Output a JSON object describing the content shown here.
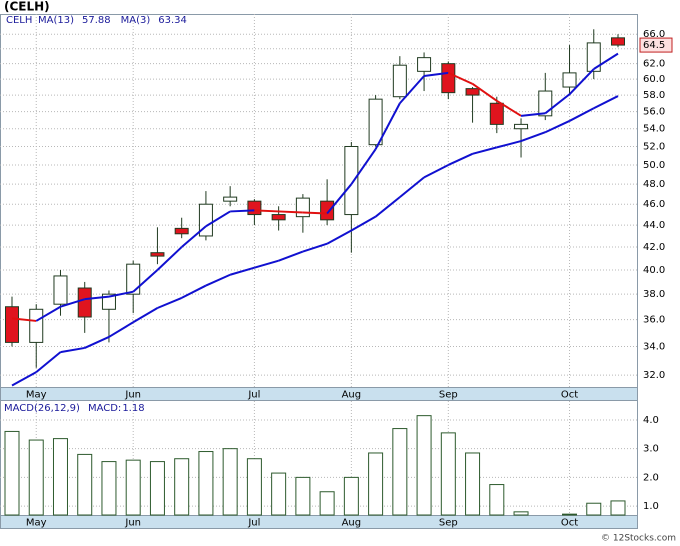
{
  "chart_data": [
    {
      "type": "candlestick",
      "title": "(CELH)",
      "symbol": "CELH",
      "categories": [
        null,
        "May",
        null,
        null,
        null,
        "Jun",
        null,
        null,
        null,
        null,
        "Jul",
        null,
        null,
        null,
        "Aug",
        null,
        null,
        null,
        "Sep",
        null,
        null,
        null,
        null,
        "Oct",
        null,
        null
      ],
      "open": [
        37.0,
        34.3,
        37.2,
        38.5,
        36.8,
        38.0,
        41.5,
        43.7,
        43.0,
        46.3,
        46.3,
        45.0,
        44.8,
        46.3,
        45.0,
        52.2,
        57.8,
        61.0,
        62.0,
        58.8,
        57.0,
        54.0,
        55.5,
        59.0,
        61.0,
        65.5
      ],
      "high": [
        37.8,
        37.2,
        40.0,
        39.0,
        38.3,
        40.8,
        43.8,
        44.7,
        47.3,
        47.8,
        46.5,
        45.8,
        47.0,
        48.5,
        52.5,
        58.0,
        63.0,
        63.5,
        62.3,
        59.0,
        57.8,
        55.2,
        60.8,
        64.5,
        66.7,
        66.0
      ],
      "low": [
        34.0,
        32.5,
        36.3,
        35.0,
        34.3,
        36.5,
        40.5,
        42.8,
        42.6,
        45.8,
        44.0,
        43.5,
        43.3,
        44.0,
        41.5,
        52.0,
        57.5,
        58.5,
        57.5,
        54.7,
        53.5,
        50.8,
        55.0,
        58.0,
        60.0,
        64.2
      ],
      "close": [
        34.3,
        36.8,
        39.5,
        36.2,
        38.0,
        40.5,
        41.2,
        43.2,
        46.0,
        46.7,
        45.0,
        44.5,
        46.6,
        44.5,
        52.0,
        57.5,
        61.8,
        62.8,
        58.3,
        58.0,
        54.5,
        54.5,
        58.5,
        60.8,
        64.8,
        64.5
      ],
      "up_color": "#ffffff",
      "down_color": "#e0141e",
      "candle_edge": "#203a20",
      "series": [
        {
          "name": "MA(13)",
          "color": "#1010d0",
          "values": [
            31.3,
            32.2,
            33.6,
            33.9,
            34.7,
            35.8,
            36.9,
            37.7,
            38.7,
            39.6,
            40.2,
            40.8,
            41.6,
            42.3,
            43.5,
            44.8,
            46.7,
            48.7,
            50.0,
            51.2,
            51.9,
            52.6,
            53.6,
            54.9,
            56.4,
            57.88
          ]
        },
        {
          "name": "MA(3)",
          "color": "#1010d0",
          "down_color": "#e01010",
          "values": [
            36.1,
            35.9,
            37.0,
            37.6,
            37.8,
            38.2,
            40.0,
            42.0,
            43.9,
            45.3,
            45.4,
            45.3,
            45.2,
            45.1,
            48.0,
            51.7,
            57.0,
            60.4,
            60.8,
            59.4,
            57.3,
            55.5,
            55.8,
            58.1,
            61.3,
            63.34
          ]
        }
      ],
      "log_scale": true,
      "grid": true,
      "ylim": [
        31.2,
        68.9
      ],
      "yticks": [
        {
          "value": 32,
          "label": "32.0"
        },
        {
          "value": 34,
          "label": "34.0"
        },
        {
          "value": 36,
          "label": "36.0"
        },
        {
          "value": 38,
          "label": "38.0"
        },
        {
          "value": 40,
          "label": "40.0"
        },
        {
          "value": 42,
          "label": "42.0"
        },
        {
          "value": 44,
          "label": "44.0"
        },
        {
          "value": 46,
          "label": "46.0"
        },
        {
          "value": 48,
          "label": "48.0"
        },
        {
          "value": 50,
          "label": "50.0"
        },
        {
          "value": 52,
          "label": "52.0"
        },
        {
          "value": 54,
          "label": "54.0"
        },
        {
          "value": 56,
          "label": "56.0"
        },
        {
          "value": 58,
          "label": "58.0"
        },
        {
          "value": 60,
          "label": "60.0"
        },
        {
          "value": 62,
          "label": "62.0"
        },
        {
          "value": 64,
          "label": "64.0"
        },
        {
          "value": 66,
          "label": "66.0"
        }
      ]
    },
    {
      "type": "bar",
      "title": "MACD(26,12,9)",
      "series": [
        {
          "name": "MACD:",
          "color": "#ffffff",
          "edge": "#2d5a2d",
          "values": [
            3.6,
            3.3,
            3.35,
            2.8,
            2.55,
            2.6,
            2.55,
            2.65,
            2.9,
            3.0,
            2.65,
            2.15,
            2.0,
            1.5,
            2.0,
            2.85,
            3.7,
            4.15,
            3.55,
            2.85,
            1.75,
            0.8,
            null,
            0.72,
            1.1,
            1.18
          ]
        }
      ],
      "grid": true,
      "ylim": [
        0.69,
        4.66
      ],
      "yticks": [
        {
          "value": 1,
          "label": "1.0"
        },
        {
          "value": 2,
          "label": "2.0"
        },
        {
          "value": 3,
          "label": "3.0"
        },
        {
          "value": 4,
          "label": "4.0"
        }
      ]
    }
  ],
  "footer": "© 12Stocks.com"
}
